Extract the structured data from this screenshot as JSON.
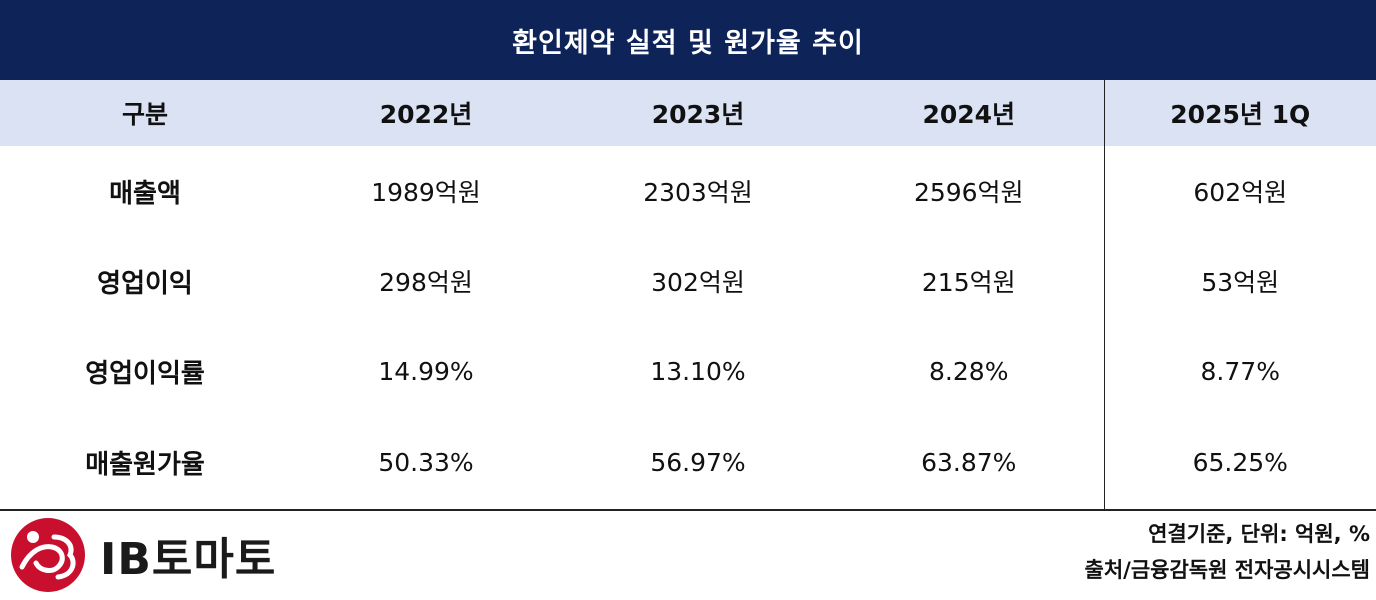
{
  "title": "환인제약 실적 및 원가율 추이",
  "table": {
    "headers": [
      "구분",
      "2022년",
      "2023년",
      "2024년",
      "2025년 1Q"
    ],
    "rows": [
      {
        "label": "매출액",
        "values": [
          "1989억원",
          "2303억원",
          "2596억원",
          "602억원"
        ]
      },
      {
        "label": "영업이익",
        "values": [
          "298억원",
          "302억원",
          "215억원",
          "53억원"
        ]
      },
      {
        "label": "영업이익률",
        "values": [
          "14.99%",
          "13.10%",
          "8.28%",
          "8.77%"
        ]
      },
      {
        "label": "매출원가율",
        "values": [
          "50.33%",
          "56.97%",
          "63.87%",
          "65.25%"
        ]
      }
    ]
  },
  "footer": {
    "logo_text": "IB토마토",
    "note_line1": "연결기준, 단위: 억원, %",
    "note_line2": "출처/금융감독원 전자공시시스템"
  },
  "colors": {
    "title_bg": "#0e2459",
    "header_bg": "#dbe2f3",
    "logo_red": "#c8102e"
  }
}
